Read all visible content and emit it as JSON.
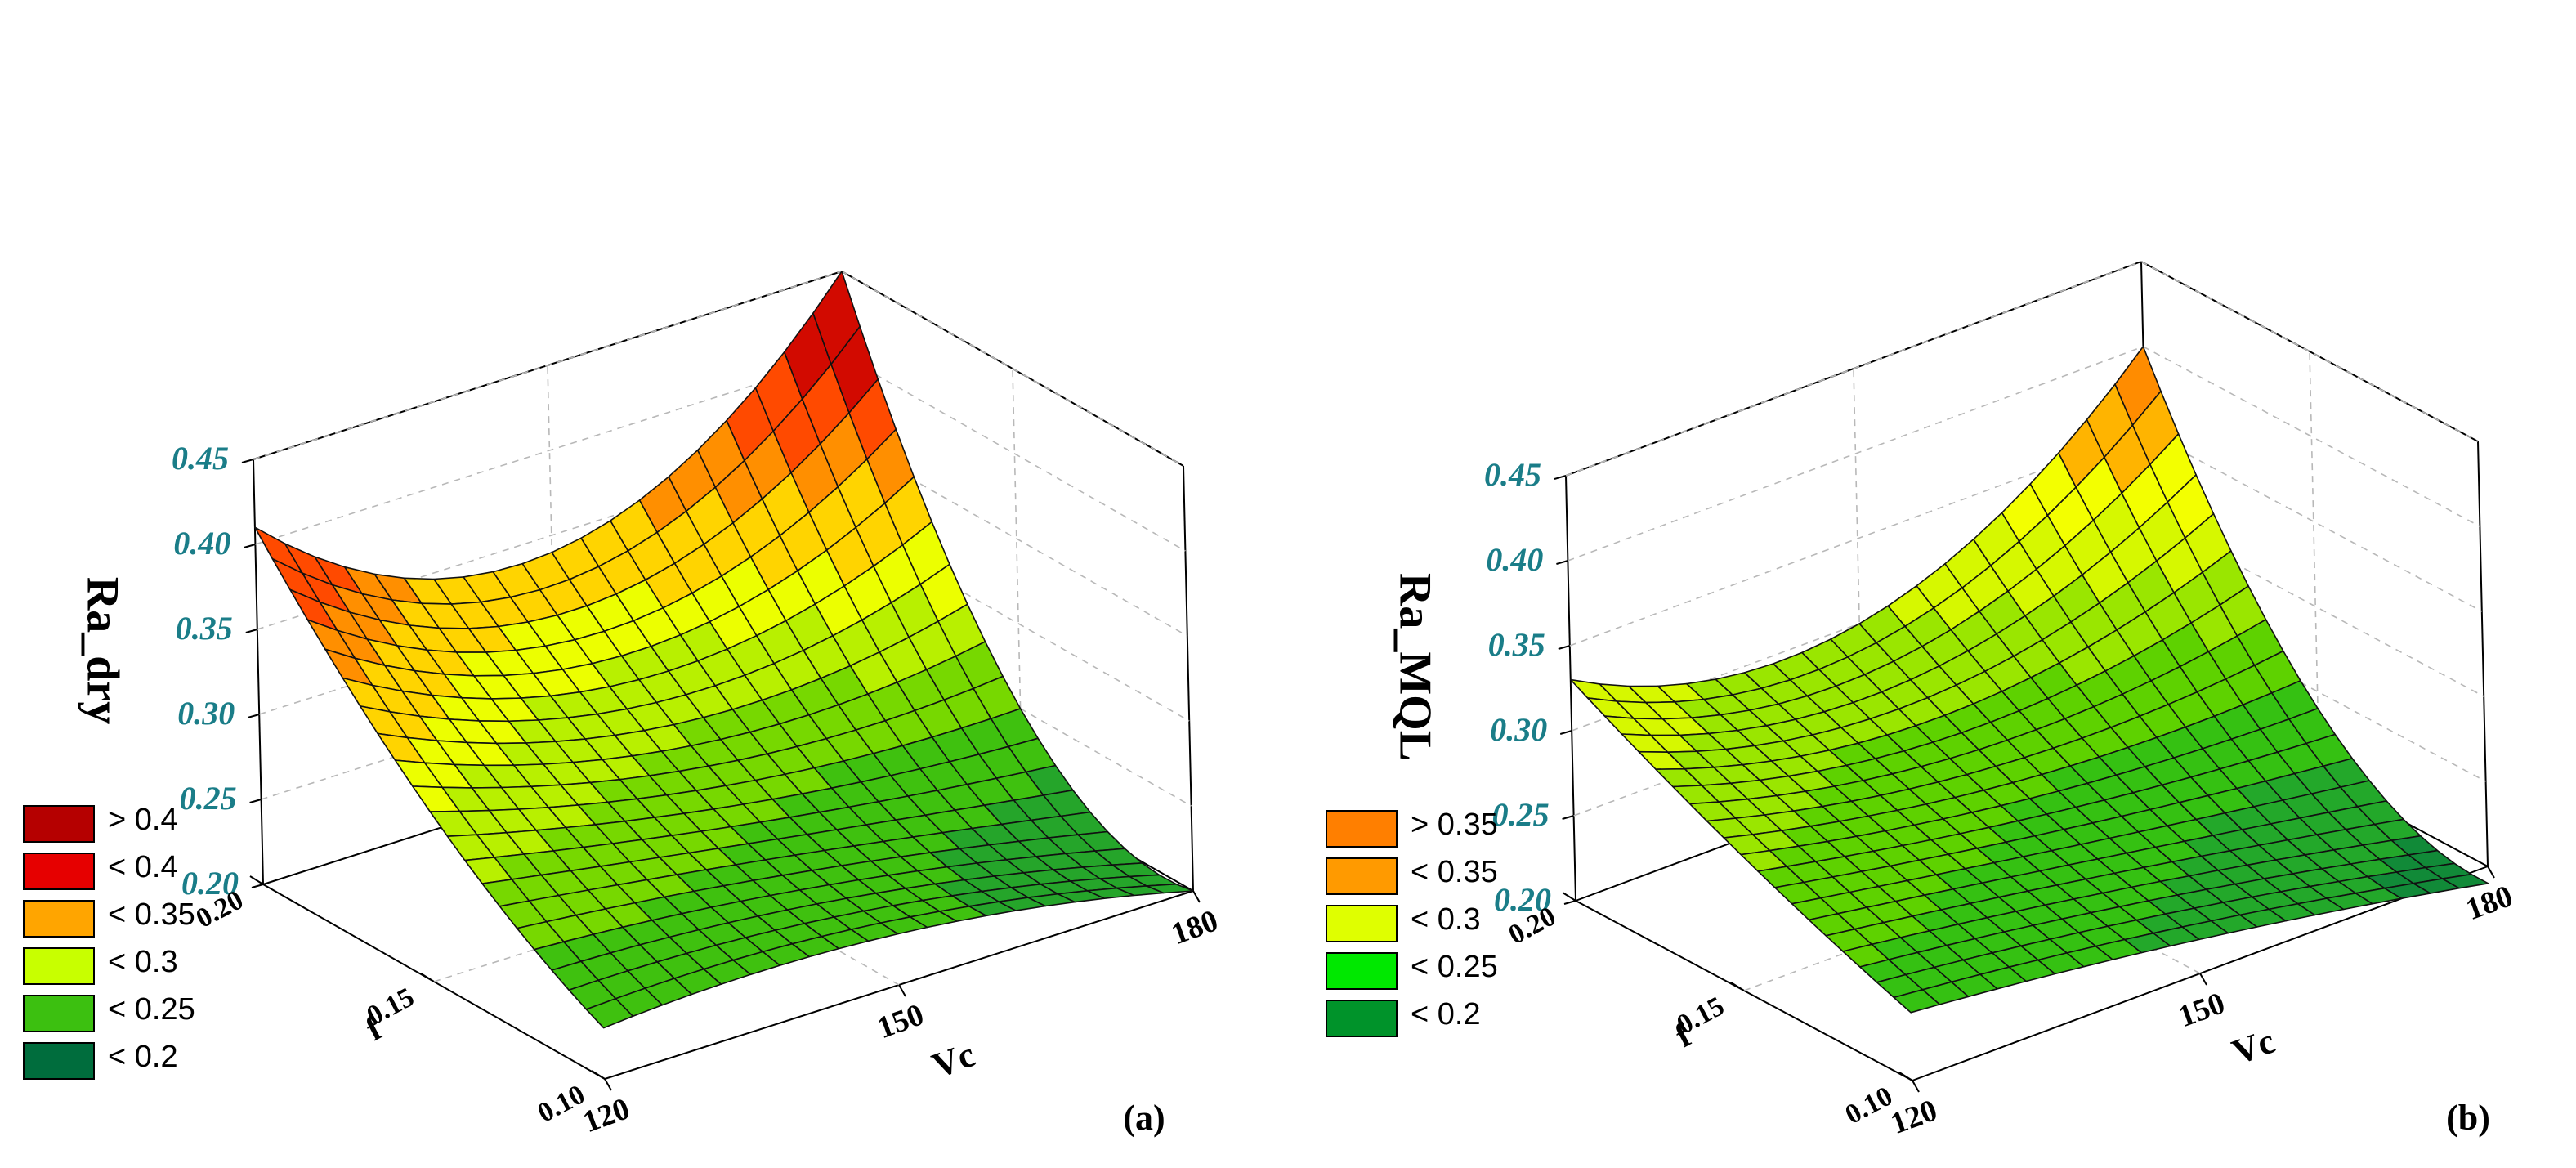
{
  "figure": {
    "panels": [
      {
        "id": "a",
        "panel_label": "(a)",
        "z_label": "Ra_dry",
        "x_label": "Vc",
        "y_label": "f",
        "x_ticks": [
          "120",
          "150",
          "180"
        ],
        "y_ticks": [
          "0.20",
          "0.15",
          "0.10"
        ],
        "z_ticks": [
          "0.20",
          "0.25",
          "0.30",
          "0.35",
          "0.40",
          "0.45"
        ],
        "legend": [
          {
            "label": "> 0.4",
            "color": "#b50000"
          },
          {
            "label": "< 0.4",
            "color": "#e60000"
          },
          {
            "label": "< 0.35",
            "color": "#ffa500"
          },
          {
            "label": "< 0.3",
            "color": "#c8ff00"
          },
          {
            "label": "< 0.25",
            "color": "#3cc010"
          },
          {
            "label": "< 0.2",
            "color": "#006d3d"
          }
        ]
      },
      {
        "id": "b",
        "panel_label": "(b)",
        "z_label": "Ra_MQL",
        "x_label": "Vc",
        "y_label": "f",
        "x_ticks": [
          "120",
          "150",
          "180"
        ],
        "y_ticks": [
          "0.20",
          "0.15",
          "0.10"
        ],
        "z_ticks": [
          "0.20",
          "0.25",
          "0.30",
          "0.35",
          "0.40",
          "0.45"
        ],
        "legend": [
          {
            "label": "> 0.35",
            "color": "#ff7f00"
          },
          {
            "label": "< 0.35",
            "color": "#ff9a00"
          },
          {
            "label": "< 0.3",
            "color": "#dfff00"
          },
          {
            "label": "< 0.25",
            "color": "#00e800"
          },
          {
            "label": "< 0.2",
            "color": "#00932a"
          }
        ]
      }
    ]
  },
  "chart_data": [
    {
      "type": "surface",
      "title": "(a)",
      "xlabel": "Vc",
      "ylabel": "f",
      "zlabel": "Ra_dry",
      "xlim": [
        120,
        180
      ],
      "ylim": [
        0.1,
        0.2
      ],
      "zlim": [
        0.2,
        0.45
      ],
      "x": [
        120,
        150,
        180
      ],
      "y": [
        0.1,
        0.15,
        0.2
      ],
      "z": [
        [
          0.23,
          0.23,
          0.2
        ],
        [
          0.3,
          0.26,
          0.25
        ],
        [
          0.41,
          0.34,
          0.45
        ]
      ],
      "legend": [
        "> 0.4",
        "< 0.4",
        "< 0.35",
        "< 0.3",
        "< 0.25",
        "< 0.2"
      ]
    },
    {
      "type": "surface",
      "title": "(b)",
      "xlabel": "Vc",
      "ylabel": "f",
      "zlabel": "Ra_MQL",
      "xlim": [
        120,
        180
      ],
      "ylim": [
        0.1,
        0.2
      ],
      "zlim": [
        0.2,
        0.45
      ],
      "x": [
        120,
        150,
        180
      ],
      "y": [
        0.1,
        0.15,
        0.2
      ],
      "z": [
        [
          0.24,
          0.22,
          0.19
        ],
        [
          0.28,
          0.25,
          0.24
        ],
        [
          0.33,
          0.3,
          0.4
        ]
      ],
      "legend": [
        "> 0.35",
        "< 0.35",
        "< 0.3",
        "< 0.25",
        "< 0.2"
      ]
    }
  ]
}
